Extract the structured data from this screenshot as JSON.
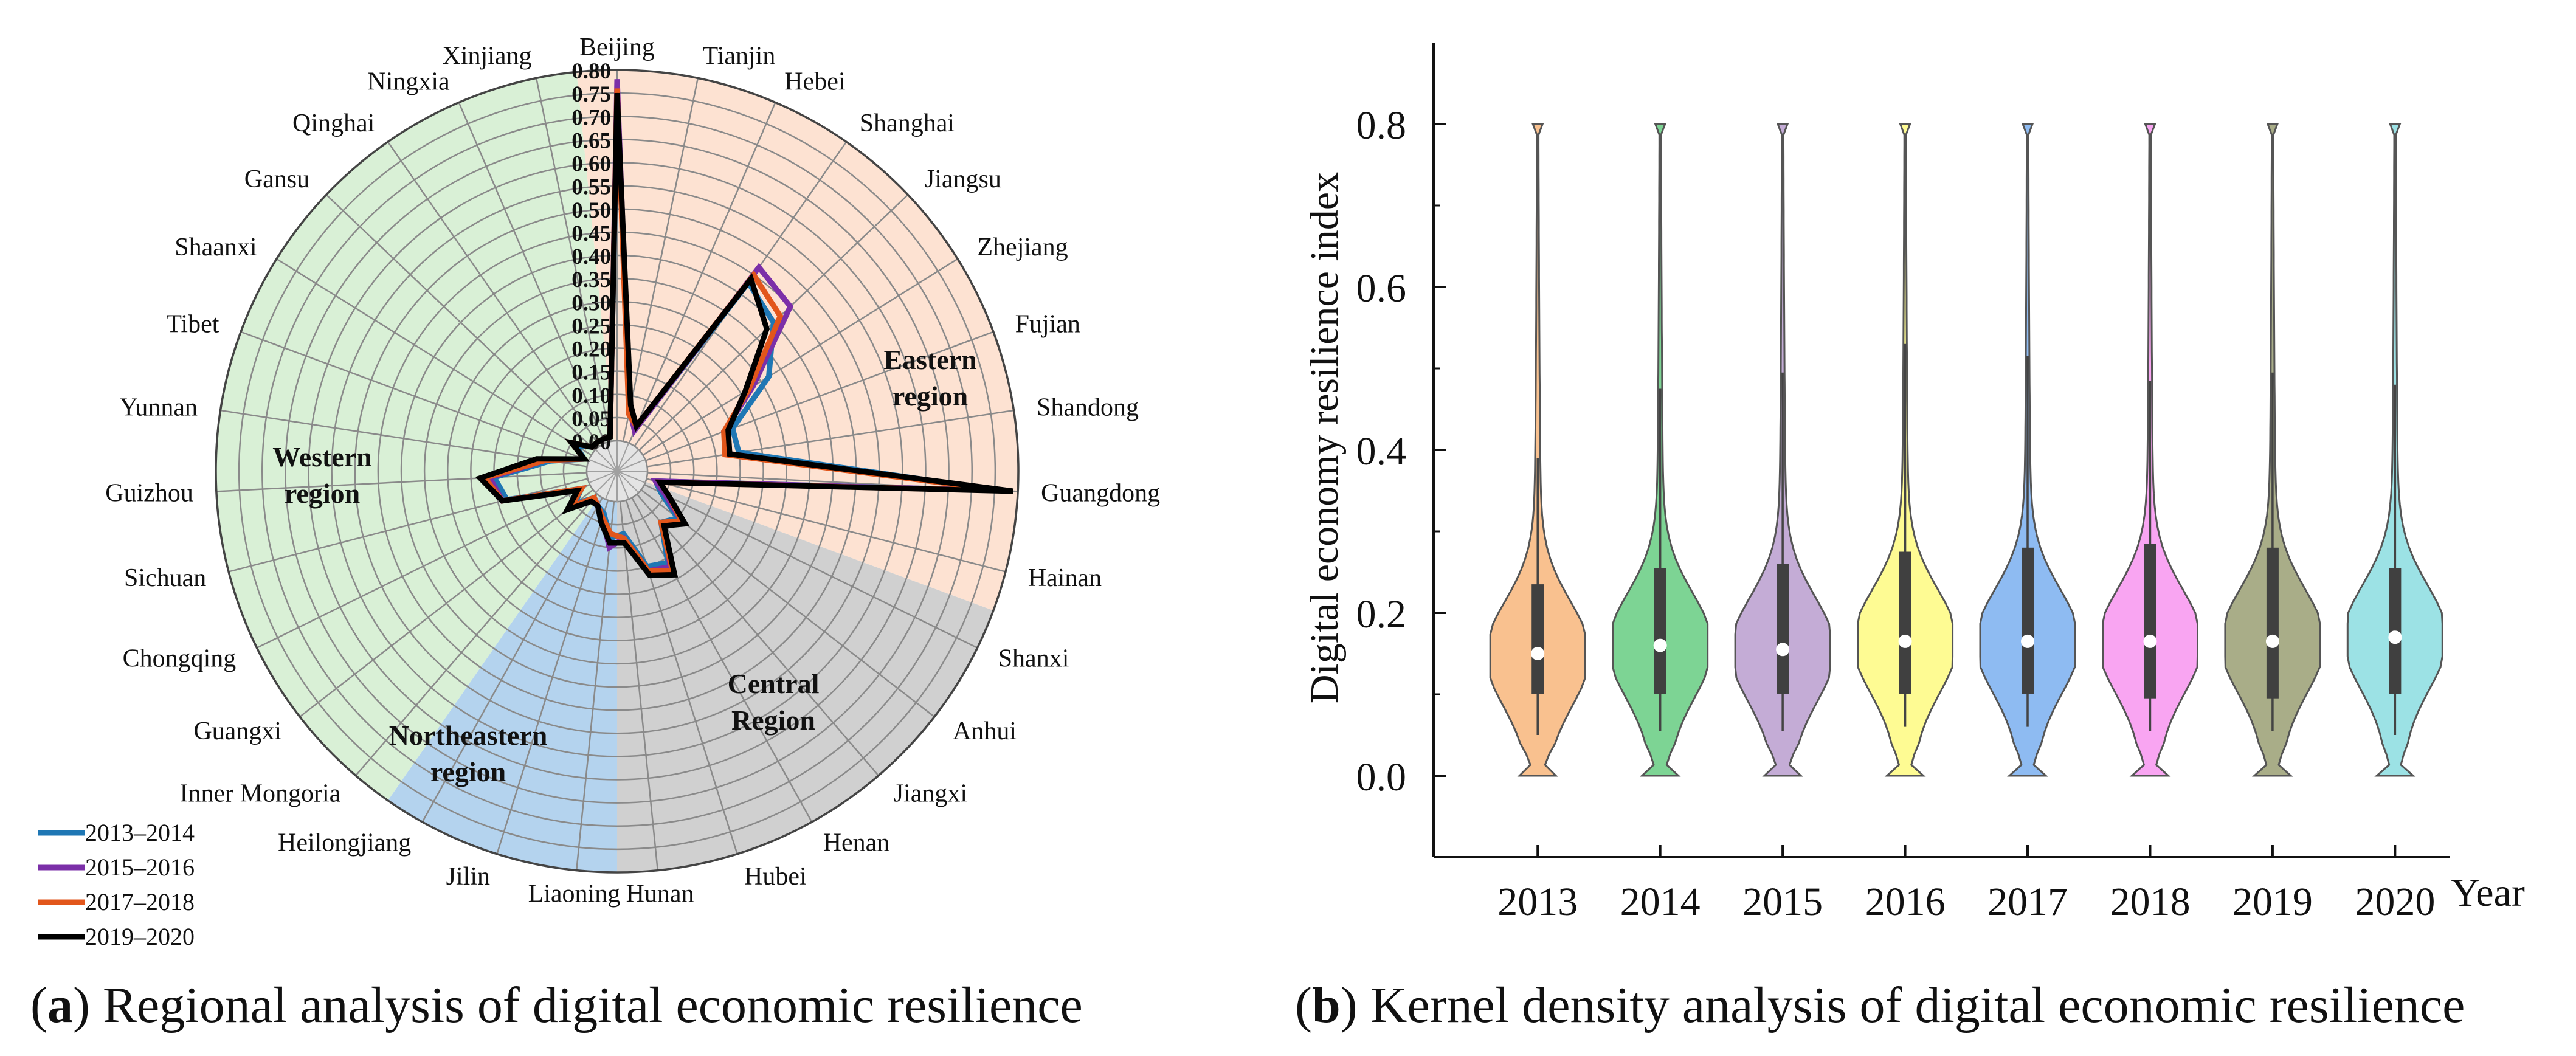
{
  "chart_data": [
    {
      "type": "radar",
      "panel": "a",
      "caption_letter": "a",
      "caption_text": "Regional analysis of digital economic resilience",
      "axis_ticks": [
        "0.00",
        "0.05",
        "0.10",
        "0.15",
        "0.20",
        "0.25",
        "0.30",
        "0.35",
        "0.40",
        "0.45",
        "0.50",
        "0.55",
        "0.60",
        "0.65",
        "0.70",
        "0.75",
        "0.80"
      ],
      "ylim": [
        0,
        0.8
      ],
      "categories": [
        "Beijing",
        "Tianjin",
        "Hebei",
        "Shanghai",
        "Jiangsu",
        "Zhejiang",
        "Fujian",
        "Shandong",
        "Guangdong",
        "Hainan",
        "Shanxi",
        "Anhui",
        "Jiangxi",
        "Henan",
        "Hubei",
        "Hunan",
        "Liaoning",
        "Jilin",
        "Heilongjiang",
        "Inner Mongoria",
        "Guangxi",
        "Chongqing",
        "Sichuan",
        "Guizhou",
        "Yunnan",
        "Tibet",
        "Shaanxi",
        "Gansu",
        "Qinghai",
        "Ningxia",
        "Xinjiang"
      ],
      "regions": [
        {
          "name": "Eastern region",
          "line1": "Eastern",
          "line2": "region",
          "color": "#fde2d2"
        },
        {
          "name": "Central Region",
          "line1": "Central",
          "line2": "Region",
          "color": "#d0d0d0"
        },
        {
          "name": "Northeastern region",
          "line1": "Northeastern",
          "line2": "region",
          "color": "#b4d3ee"
        },
        {
          "name": "Western region",
          "line1": "Western",
          "line2": "region",
          "color": "#d9f0d6"
        }
      ],
      "series": [
        {
          "name": "2013–2014",
          "color": "#1f77b4",
          "values": [
            0.73,
            0.07,
            0.03,
            0.43,
            0.4,
            0.32,
            0.2,
            0.2,
            0.76,
            0.02,
            0.04,
            0.1,
            0.08,
            0.16,
            0.15,
            0.07,
            0.08,
            0.03,
            0.02,
            0.01,
            0.05,
            0.02,
            0.18,
            0.2,
            0.08,
            0.01,
            0.04,
            0.01,
            0.01,
            0.01,
            0.01
          ]
        },
        {
          "name": "2015–2016",
          "color": "#7b2fa8",
          "values": [
            0.78,
            0.07,
            0.03,
            0.47,
            0.45,
            0.28,
            0.18,
            0.18,
            0.77,
            0.02,
            0.05,
            0.11,
            0.09,
            0.17,
            0.16,
            0.08,
            0.1,
            0.04,
            0.02,
            0.01,
            0.06,
            0.02,
            0.19,
            0.21,
            0.09,
            0.01,
            0.05,
            0.01,
            0.01,
            0.01,
            0.01
          ]
        },
        {
          "name": "2017–2018",
          "color": "#e2561b",
          "values": [
            0.76,
            0.06,
            0.04,
            0.45,
            0.42,
            0.27,
            0.18,
            0.17,
            0.77,
            0.03,
            0.06,
            0.11,
            0.08,
            0.18,
            0.16,
            0.08,
            0.07,
            0.04,
            0.02,
            0.01,
            0.06,
            0.02,
            0.19,
            0.22,
            0.09,
            0.01,
            0.05,
            0.01,
            0.01,
            0.01,
            0.01
          ]
        },
        {
          "name": "2019–2020",
          "color": "#000000",
          "values": [
            0.75,
            0.08,
            0.04,
            0.44,
            0.38,
            0.26,
            0.19,
            0.18,
            0.79,
            0.03,
            0.06,
            0.12,
            0.09,
            0.19,
            0.17,
            0.09,
            0.09,
            0.05,
            0.02,
            0.02,
            0.07,
            0.03,
            0.19,
            0.23,
            0.11,
            0.01,
            0.05,
            0.01,
            0.01,
            0.01,
            0.01
          ]
        }
      ]
    },
    {
      "type": "violin",
      "panel": "b",
      "caption_letter": "b",
      "caption_text": "Kernel density analysis of digital economic resilience",
      "ylabel": "Digital economy resilience index",
      "xlabel": "Year",
      "ylim": [
        -0.1,
        0.9
      ],
      "yticks": [
        "0.0",
        "0.2",
        "0.4",
        "0.6",
        "0.8"
      ],
      "categories": [
        "2013",
        "2014",
        "2015",
        "2016",
        "2017",
        "2018",
        "2019",
        "2020"
      ],
      "colors": [
        "#f9c18f",
        "#7dd494",
        "#c4acd6",
        "#fefb93",
        "#8ebbf2",
        "#f9a5f2",
        "#a9ad88",
        "#9ce2e5"
      ],
      "medians": [
        0.15,
        0.16,
        0.155,
        0.165,
        0.165,
        0.165,
        0.165,
        0.17
      ],
      "q1": [
        0.1,
        0.1,
        0.1,
        0.1,
        0.1,
        0.095,
        0.095,
        0.1
      ],
      "q3": [
        0.235,
        0.255,
        0.26,
        0.275,
        0.28,
        0.285,
        0.28,
        0.255
      ],
      "whisker_low": [
        0.05,
        0.055,
        0.055,
        0.06,
        0.06,
        0.055,
        0.055,
        0.05
      ],
      "whisker_high": [
        0.39,
        0.475,
        0.495,
        0.53,
        0.515,
        0.485,
        0.495,
        0.48
      ],
      "max": [
        0.8,
        0.8,
        0.8,
        0.8,
        0.8,
        0.8,
        0.8,
        0.8
      ],
      "min": [
        0.0,
        0.0,
        0.0,
        0.0,
        0.0,
        0.0,
        0.0,
        0.0
      ]
    }
  ]
}
